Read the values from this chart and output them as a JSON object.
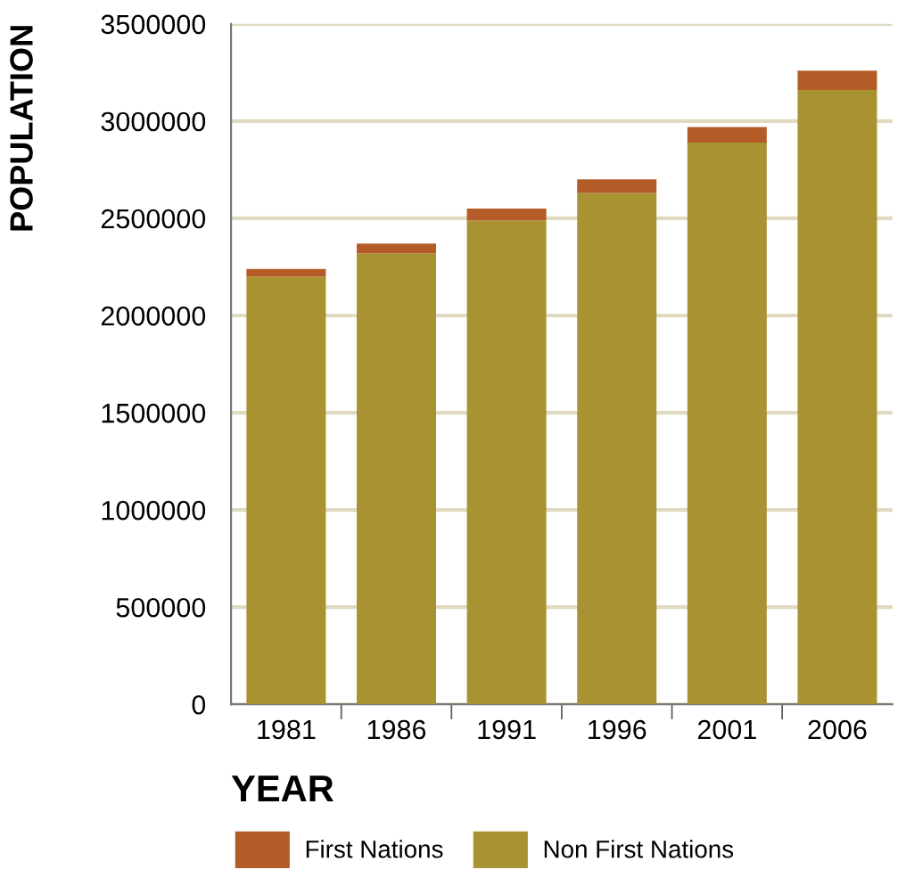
{
  "chart_data": {
    "type": "bar",
    "stacked": true,
    "xlabel": "YEAR",
    "ylabel": "POPULATION",
    "categories": [
      "1981",
      "1986",
      "1991",
      "1996",
      "2001",
      "2006"
    ],
    "series": [
      {
        "name": "Non First Nations",
        "color": "#a89232",
        "values": [
          2200000,
          2320000,
          2490000,
          2630000,
          2890000,
          3160000
        ]
      },
      {
        "name": "First Nations",
        "color": "#b45c28",
        "values": [
          40000,
          50000,
          60000,
          70000,
          80000,
          100000
        ]
      }
    ],
    "ylim": [
      0,
      3500000
    ],
    "yticks": [
      0,
      500000,
      1000000,
      1500000,
      2000000,
      2500000,
      3000000,
      3500000
    ],
    "grid": "y",
    "legend": "bottom left"
  }
}
